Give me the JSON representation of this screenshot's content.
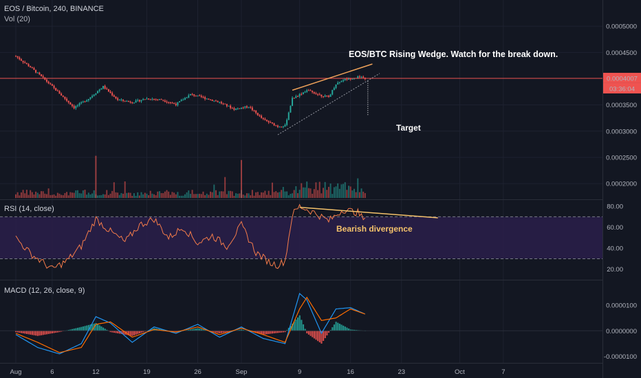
{
  "header": {
    "symbol_line": "EOS / Bitcoin, 240, BINANCE",
    "volume_label": "Vol (20)",
    "rsi_label": "RSI (14, close)",
    "macd_label": "MACD (12, 26, close, 9)"
  },
  "annotations": {
    "wedge": "EOS/BTC  Rising Wedge.  Watch for the break down.",
    "target": "Target",
    "divergence": "Bearish divergence"
  },
  "price_badge": {
    "value": "0.0004007",
    "timer": "03:36:04",
    "color": "#ef5350"
  },
  "colors": {
    "up": "#26a69a",
    "down": "#ef5350",
    "rsi_line": "#f57c4a",
    "rsi_band": "#2a1f4a",
    "macd": "#2196f3",
    "signal": "#ff6d00",
    "wedge_upper": "#f0a35a",
    "wedge_lower": "#9598a1",
    "divergence": "#f5c26b",
    "target": "#ffffff"
  },
  "chart_data": [
    {
      "type": "candlestick",
      "title": "EOS / Bitcoin, 240, BINANCE",
      "ylabel": "",
      "ylim": [
        0.00017,
        0.00055
      ],
      "y_ticks": [
        "0.0005000",
        "0.0004500",
        "0.0004007",
        "0.0003500",
        "0.0003000",
        "0.0002500",
        "0.0002000"
      ],
      "x_ticks": [
        "Aug",
        "6",
        "12",
        "19",
        "26",
        "Sep",
        "9",
        "16",
        "23",
        "Oct",
        "7"
      ],
      "x_range": [
        "Aug 1",
        "Oct 11"
      ],
      "last_price": 0.0004007,
      "horizontal_line": 0.0004007,
      "series": [
        {
          "name": "price_path",
          "x": [
            "Aug 1",
            "Aug 3",
            "Aug 5",
            "Aug 7",
            "Aug 9",
            "Aug 11",
            "Aug 13",
            "Aug 15",
            "Aug 17",
            "Aug 19",
            "Aug 21",
            "Aug 23",
            "Aug 25",
            "Aug 27",
            "Aug 29",
            "Aug 31",
            "Sep 2",
            "Sep 4",
            "Sep 6",
            "Sep 7",
            "Sep 8",
            "Sep 10",
            "Sep 12",
            "Sep 13",
            "Sep 14",
            "Sep 15",
            "Sep 17",
            "Sep 18"
          ],
          "values": [
            0.000443,
            0.000422,
            0.000398,
            0.000372,
            0.000345,
            0.000362,
            0.000385,
            0.00036,
            0.000355,
            0.000362,
            0.00036,
            0.000351,
            0.00037,
            0.000363,
            0.000355,
            0.000342,
            0.000347,
            0.000322,
            0.000309,
            0.00031,
            0.000362,
            0.000378,
            0.000368,
            0.000365,
            0.00039,
            0.000398,
            0.000403,
            0.0004007
          ]
        }
      ],
      "volume_spikes": [
        {
          "x": "Aug 12",
          "value": 0.000253
        },
        {
          "x": "Sep 1",
          "value": 0.000245
        }
      ],
      "wedge_upper": {
        "from": [
          "Sep 8",
          0.000378
        ],
        "to": [
          "Sep 19",
          0.000428
        ]
      },
      "wedge_lower": {
        "from": [
          "Sep 6",
          0.000293
        ],
        "to": [
          "Sep 20",
          0.00041
        ]
      },
      "target_line": {
        "x": "Sep 18",
        "from": 0.000395,
        "to": 0.000329
      }
    },
    {
      "type": "line",
      "title": "RSI (14, close)",
      "ylim": [
        10,
        86
      ],
      "y_ticks": [
        "80.00",
        "60.00",
        "40.00",
        "20.00"
      ],
      "bands": [
        30,
        70
      ],
      "series": [
        {
          "name": "RSI",
          "x": [
            "Aug 1",
            "Aug 3",
            "Aug 5",
            "Aug 6",
            "Aug 8",
            "Aug 10",
            "Aug 12",
            "Aug 14",
            "Aug 16",
            "Aug 18",
            "Aug 20",
            "Aug 22",
            "Aug 24",
            "Aug 26",
            "Aug 28",
            "Aug 30",
            "Sep 1",
            "Sep 3",
            "Sep 5",
            "Sep 6",
            "Sep 7",
            "Sep 8",
            "Sep 9",
            "Sep 11",
            "Sep 13",
            "Sep 15",
            "Sep 17",
            "Sep 18"
          ],
          "values": [
            50,
            35,
            25,
            20,
            28,
            42,
            68,
            56,
            46,
            62,
            68,
            50,
            60,
            45,
            52,
            42,
            62,
            36,
            26,
            24,
            28,
            72,
            80,
            74,
            66,
            77,
            74,
            66
          ]
        }
      ],
      "divergence_line": {
        "from": [
          "Sep 9",
          79
        ],
        "to": [
          "Sep 28",
          69
        ]
      }
    },
    {
      "type": "line",
      "title": "MACD (12, 26, close, 9)",
      "ylim": [
        -1.25e-05,
        1.8e-05
      ],
      "y_ticks": [
        "0.0000100",
        "0.0000000",
        "-0.0000100"
      ],
      "series": [
        {
          "name": "MACD",
          "x": [
            "Aug 1",
            "Aug 4",
            "Aug 7",
            "Aug 10",
            "Aug 12",
            "Aug 14",
            "Aug 17",
            "Aug 20",
            "Aug 23",
            "Aug 26",
            "Aug 29",
            "Sep 1",
            "Sep 4",
            "Sep 7",
            "Sep 9",
            "Sep 10",
            "Sep 12",
            "Sep 14",
            "Sep 16",
            "Sep 18"
          ],
          "values": [
            -1.5e-06,
            -6.5e-06,
            -9e-06,
            -5e-06,
            5.5e-06,
            3e-06,
            -4.5e-06,
            1.5e-06,
            -1e-06,
            2.5e-06,
            -2.5e-06,
            1.5e-06,
            -3e-06,
            -5e-06,
            1.45e-05,
            1.2e-05,
            -1e-06,
            8.5e-06,
            9e-06,
            6.5e-06
          ]
        },
        {
          "name": "Signal",
          "x": [
            "Aug 1",
            "Aug 4",
            "Aug 7",
            "Aug 10",
            "Aug 12",
            "Aug 14",
            "Aug 17",
            "Aug 20",
            "Aug 23",
            "Aug 26",
            "Aug 29",
            "Sep 1",
            "Sep 4",
            "Sep 7",
            "Sep 9",
            "Sep 10",
            "Sep 12",
            "Sep 14",
            "Sep 16",
            "Sep 18"
          ],
          "values": [
            -1e-06,
            -4.5e-06,
            -8.5e-06,
            -6.5e-06,
            2.5e-06,
            3.5e-06,
            -2.5e-06,
            5e-07,
            -5e-07,
            1.5e-06,
            -1.5e-06,
            1e-06,
            -1.5e-06,
            -4.5e-06,
            8.5e-06,
            1.3e-05,
            4e-06,
            5e-06,
            8.5e-06,
            6.5e-06
          ]
        }
      ]
    }
  ]
}
